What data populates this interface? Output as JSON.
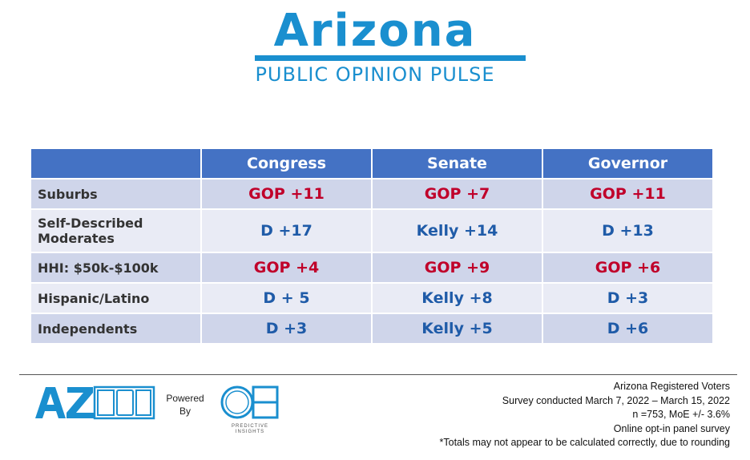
{
  "header": {
    "title": "Arizona",
    "subtitle": "PUBLIC OPINION PULSE"
  },
  "table": {
    "columns": [
      "Congress",
      "Senate",
      "Governor"
    ],
    "rows": [
      {
        "label": "Suburbs",
        "values": [
          "GOP +11",
          "GOP +7",
          "GOP +11"
        ],
        "parties": [
          "gop",
          "gop",
          "gop"
        ]
      },
      {
        "label_lines": [
          "Self-Described",
          "Moderates"
        ],
        "values": [
          "D +17",
          "Kelly +14",
          "D +13"
        ],
        "parties": [
          "dem",
          "dem",
          "dem"
        ]
      },
      {
        "label": "HHI: $50k-$100k",
        "values": [
          "GOP +4",
          "GOP +9",
          "GOP +6"
        ],
        "parties": [
          "gop",
          "gop",
          "gop"
        ]
      },
      {
        "label": "Hispanic/Latino",
        "values": [
          "D + 5",
          "Kelly +8",
          "D +3"
        ],
        "parties": [
          "dem",
          "dem",
          "dem"
        ]
      },
      {
        "label": "Independents",
        "values": [
          "D +3",
          "Kelly +5",
          "D +6"
        ],
        "parties": [
          "dem",
          "dem",
          "dem"
        ]
      }
    ]
  },
  "colors": {
    "brand_blue": "#1a8fcf",
    "header_fill": "#4472c4",
    "row_dark": "#cfd5ea",
    "row_light": "#e9ebf5",
    "gop_red": "#c0002a",
    "dem_blue": "#1f5ba8"
  },
  "footer": {
    "logo_text": "AZPOP",
    "powered_lines": [
      "Powered",
      "By"
    ],
    "partner_logo_text": "OH",
    "partner_caption_lines": [
      "PREDICTIVE",
      "INSIGHTS"
    ],
    "notes": [
      "Arizona Registered Voters",
      "Survey conducted March 7, 2022 – March 15, 2022",
      "n =753, MoE +/-  3.6%",
      "Online opt-in panel survey",
      "*Totals may not appear to be calculated correctly, due to rounding"
    ]
  }
}
